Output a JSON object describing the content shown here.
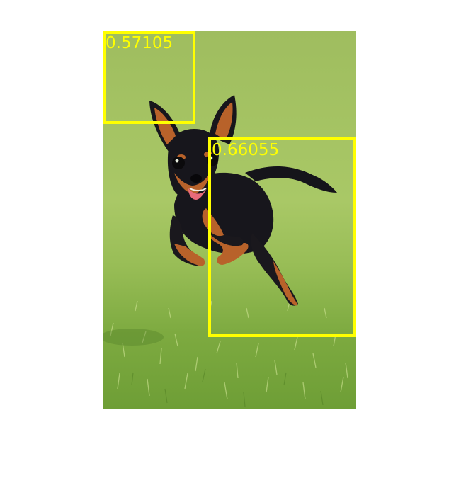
{
  "image": {
    "subject": "dog",
    "colors": {
      "background": "#ffffff",
      "box_stroke": "#ffff00",
      "score_text": "#ffff00",
      "sky_grass": "#a9c866",
      "grass_dark": "#5e8f2c",
      "dog_black": "#15141a",
      "dog_tan": "#b8622a"
    }
  },
  "detections": [
    {
      "score": "0.57105"
    },
    {
      "score": "0.66055"
    }
  ]
}
